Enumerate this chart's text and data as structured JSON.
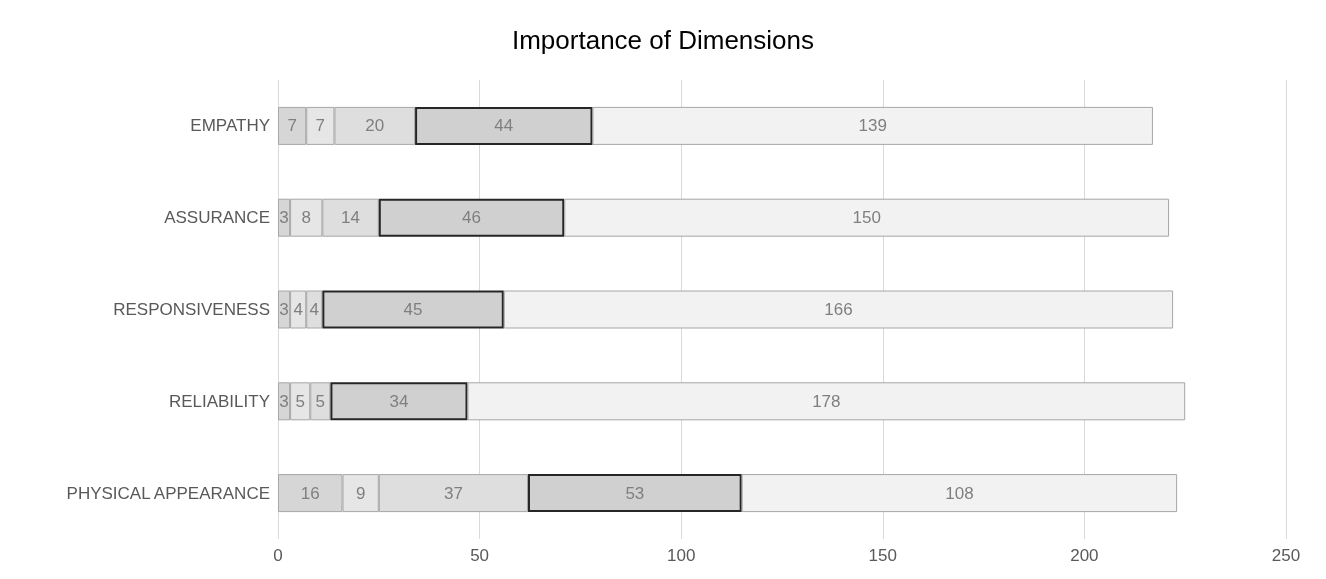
{
  "chart_data": {
    "type": "bar",
    "orientation": "horizontal",
    "stacked": true,
    "title": "Importance of Dimensions",
    "categories": [
      "EMPATHY",
      "ASSURANCE",
      "RESPONSIVENESS",
      "RELIABILITY",
      "PHYSICAL APPEARANCE"
    ],
    "series": [
      {
        "color": "#d6d6d6",
        "values": [
          7,
          3,
          3,
          3,
          16
        ]
      },
      {
        "color": "#e6e6e6",
        "values": [
          7,
          8,
          4,
          5,
          9
        ]
      },
      {
        "color": "#dedede",
        "values": [
          20,
          14,
          4,
          5,
          37
        ]
      },
      {
        "color": "#d0d0d0",
        "values": [
          44,
          46,
          45,
          34,
          53
        ]
      },
      {
        "color": "#f2f2f2",
        "values": [
          139,
          150,
          166,
          178,
          108
        ]
      }
    ],
    "xlim": [
      0,
      250
    ],
    "xticks": [
      0,
      50,
      100,
      150,
      200,
      250
    ],
    "grid": "x",
    "data_labels": true
  }
}
